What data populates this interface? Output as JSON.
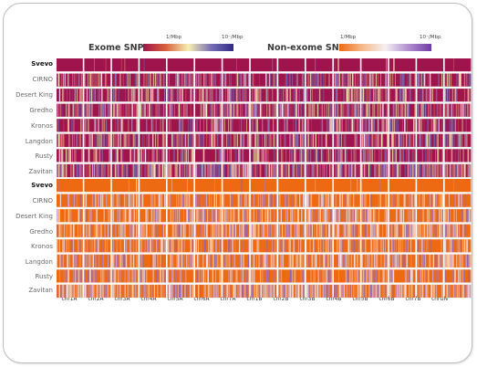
{
  "chart_data": {
    "type": "heatmap",
    "legends": [
      {
        "title": "Exome SNPs",
        "tick_low": "1/Mbp",
        "tick_high": "10⁻/Mbp",
        "colors": [
          "#a0144d",
          "#d8603c",
          "#f6f0b2",
          "#7a6fb6",
          "#2e2a86"
        ]
      },
      {
        "title": "Non-exome SNPs",
        "tick_low": "1/Mbp",
        "tick_high": "10⁻/Mbp",
        "colors": [
          "#ee6a12",
          "#f5b98a",
          "#f4f0f2",
          "#b18fd0",
          "#6f3aa3"
        ]
      }
    ],
    "groups": [
      {
        "name": "Exome SNPs",
        "base_color": "#a0144d",
        "rows": [
          "Svevo",
          "CIRNO",
          "Desert King",
          "Gredho",
          "Kronos",
          "Langdon",
          "Rusty",
          "Zavitan"
        ]
      },
      {
        "name": "Non-exome SNPs",
        "base_color": "#ee6a12",
        "rows": [
          "Svevo",
          "CIRNO",
          "Desert King",
          "Gredho",
          "Kronos",
          "Langdon",
          "Rusty",
          "Zavitan"
        ]
      }
    ],
    "columns": [
      "chr1A",
      "chr2A",
      "chr3A",
      "chr4A",
      "chr5A",
      "chr6A",
      "chr7A",
      "chr1B",
      "chr2B",
      "chr3B",
      "chr4B",
      "chr5B",
      "chr6B",
      "chr7B",
      "chrUN"
    ],
    "row_density": [
      0.02,
      0.3,
      0.33,
      0.42,
      0.26,
      0.38,
      0.28,
      0.5
    ]
  }
}
